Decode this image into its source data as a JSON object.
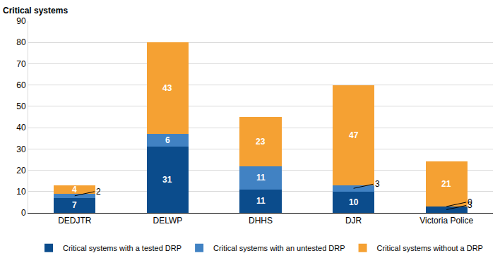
{
  "chart_data": {
    "type": "bar",
    "stacked": true,
    "data_labels": true,
    "y_label": "Critical systems",
    "categories": [
      "DEDJTR",
      "DELWP",
      "DHHS",
      "DJR",
      "Victoria Police"
    ],
    "series": [
      {
        "name": "Critical systems with a tested DRP",
        "color": "#0b4c8c",
        "values": [
          7,
          31,
          11,
          10,
          3
        ]
      },
      {
        "name": "Critical systems with an untested DRP",
        "color": "#4182c3",
        "values": [
          2,
          6,
          11,
          3,
          0
        ]
      },
      {
        "name": "Critical systems without a DRP",
        "color": "#f5a133",
        "values": [
          4,
          43,
          23,
          47,
          21
        ]
      }
    ],
    "ylim": [
      0,
      90
    ],
    "yticks": [
      0,
      10,
      20,
      30,
      40,
      50,
      60,
      70,
      80,
      90
    ],
    "grid": true,
    "legend": "bottom"
  }
}
